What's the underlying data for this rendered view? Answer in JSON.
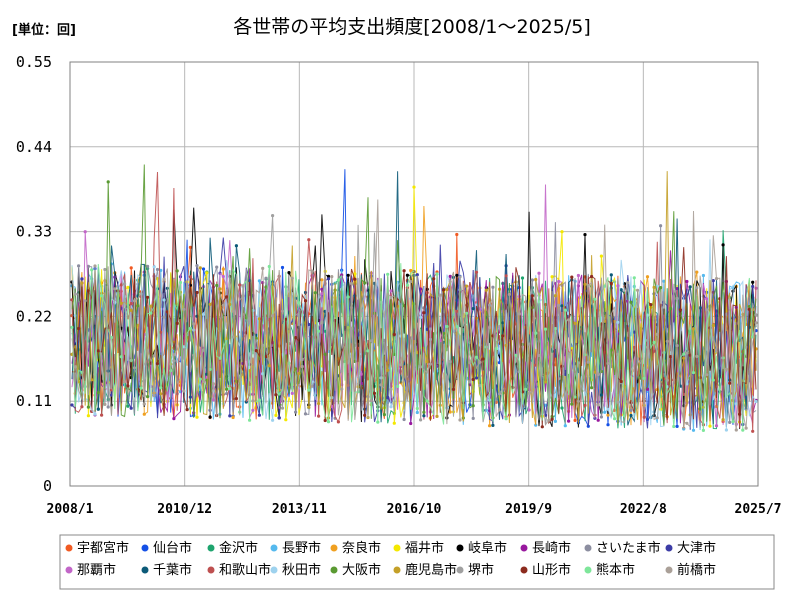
{
  "chart_data": {
    "type": "line",
    "title": "各世帯の平均支出頻度[2008/1～2025/5]",
    "unit_label": "[単位：回]",
    "y_ticks": [
      "0",
      "0.11",
      "0.22",
      "0.33",
      "0.44",
      "0.55"
    ],
    "ylim": [
      0,
      0.55
    ],
    "x_ticks": [
      "2008/1",
      "2010/12",
      "2013/11",
      "2016/10",
      "2019/9",
      "2022/8",
      "2025/7"
    ],
    "x_range": [
      "2008/1",
      "2025/7"
    ],
    "grid": true,
    "legend_position": "bottom",
    "series": [
      {
        "name": "宇都宮市",
        "color": "#f15a22"
      },
      {
        "name": "仙台市",
        "color": "#1450e6"
      },
      {
        "name": "金沢市",
        "color": "#1ea46e"
      },
      {
        "name": "長野市",
        "color": "#55b9ee"
      },
      {
        "name": "奈良市",
        "color": "#f0a020"
      },
      {
        "name": "福井市",
        "color": "#f4e800"
      },
      {
        "name": "岐阜市",
        "color": "#000000"
      },
      {
        "name": "長崎市",
        "color": "#98189e"
      },
      {
        "name": "さいたま市",
        "color": "#8c8ea0"
      },
      {
        "name": "大津市",
        "color": "#3c3ca6"
      },
      {
        "name": "那覇市",
        "color": "#c266c8"
      },
      {
        "name": "千葉市",
        "color": "#0c5a78"
      },
      {
        "name": "和歌山市",
        "color": "#be5050"
      },
      {
        "name": "秋田市",
        "color": "#9ed2ee"
      },
      {
        "name": "大阪市",
        "color": "#5a9a32"
      },
      {
        "name": "鹿児島市",
        "color": "#c4a028"
      },
      {
        "name": "堺市",
        "color": "#a0a0a0"
      },
      {
        "name": "山形市",
        "color": "#8c2b1e"
      },
      {
        "name": "熊本市",
        "color": "#7ee69a"
      },
      {
        "name": "前橋市",
        "color": "#aaa098"
      }
    ]
  }
}
